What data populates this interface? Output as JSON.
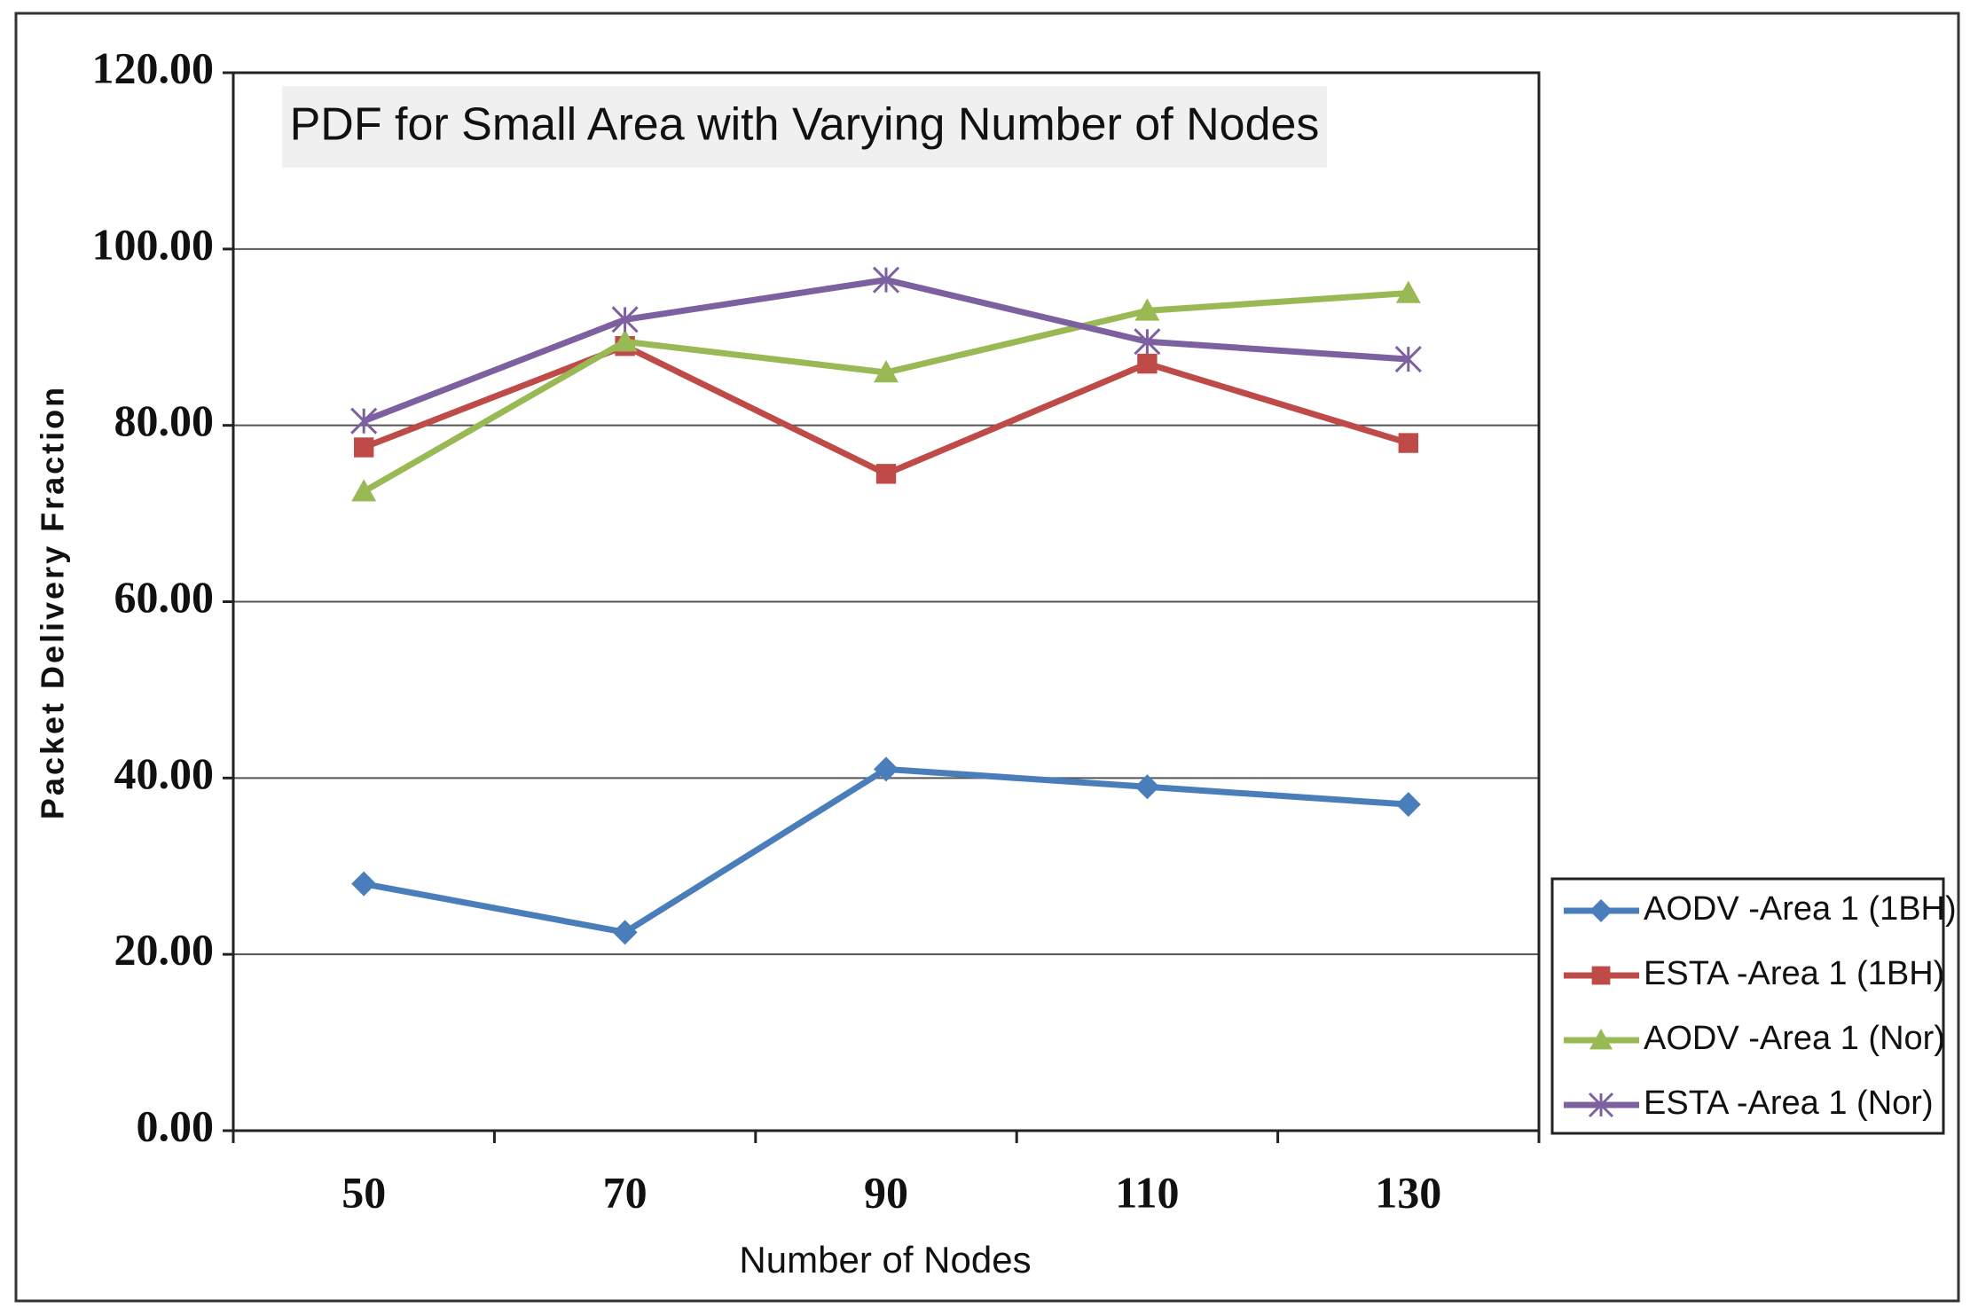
{
  "chart_data": {
    "type": "line",
    "title": "PDF for Small Area with Varying Number of Nodes",
    "x_label": "Number of Nodes",
    "y_label": "Packet Delivery Fraction",
    "categories": [
      "50",
      "70",
      "90",
      "110",
      "130"
    ],
    "series": [
      {
        "name": "AODV -Area 1 (1BH)",
        "color": "#4a7ebb",
        "marker": "diamond",
        "values": [
          28,
          22.5,
          41,
          39,
          37
        ]
      },
      {
        "name": "ESTA -Area 1 (1BH)",
        "color": "#be4b48",
        "marker": "square",
        "values": [
          77.5,
          89,
          74.5,
          87,
          78
        ]
      },
      {
        "name": "AODV -Area 1 (Nor)",
        "color": "#98b954",
        "marker": "triangle",
        "values": [
          72.5,
          89.5,
          86,
          93,
          95
        ]
      },
      {
        "name": "ESTA -Area 1 (Nor)",
        "color": "#7d60a0",
        "marker": "x",
        "values": [
          80.5,
          92,
          96.5,
          89.5,
          87.5
        ]
      }
    ],
    "ylim": [
      0,
      120
    ],
    "yticks": [
      {
        "value": 0,
        "label": "0.00"
      },
      {
        "value": 20,
        "label": "20.00"
      },
      {
        "value": 40,
        "label": "40.00"
      },
      {
        "value": 60,
        "label": "60.00"
      },
      {
        "value": 80,
        "label": "80.00"
      },
      {
        "value": 100,
        "label": "100.00"
      },
      {
        "value": 120,
        "label": "120.00"
      }
    ],
    "grid": true,
    "legend": "right"
  }
}
